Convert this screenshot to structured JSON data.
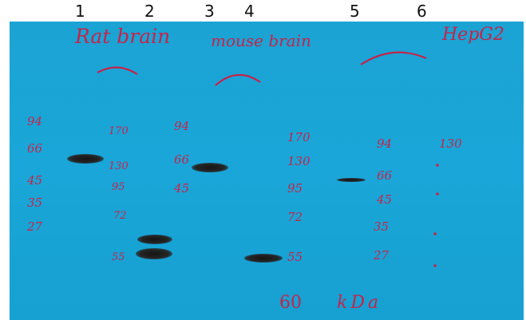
{
  "lane_numbers": [
    "1",
    "2",
    "3",
    "4",
    "5",
    "6"
  ],
  "labels": {
    "rat_brain": "Rat brain",
    "mouse_brain": "mouse brain",
    "hepg2": "HepG2",
    "bottom_size": "60",
    "bottom_unit": "kDa"
  },
  "ladder_low": [
    "94",
    "66",
    "45",
    "35",
    "27"
  ],
  "ladder_high": [
    "170",
    "130",
    "95",
    "72",
    "55"
  ],
  "ladder_mid": [
    "94",
    "66",
    "45"
  ],
  "ladder_mouse": [
    "170",
    "130",
    "95",
    "72",
    "55"
  ],
  "ladder_hep_low": [
    "94",
    "66",
    "45",
    "35",
    "27"
  ],
  "ladder_hep_high": [
    "130"
  ],
  "colors": {
    "membrane": "#1aa6d8",
    "marker_ink": "#c4244a",
    "band": "#1e1e1e"
  }
}
